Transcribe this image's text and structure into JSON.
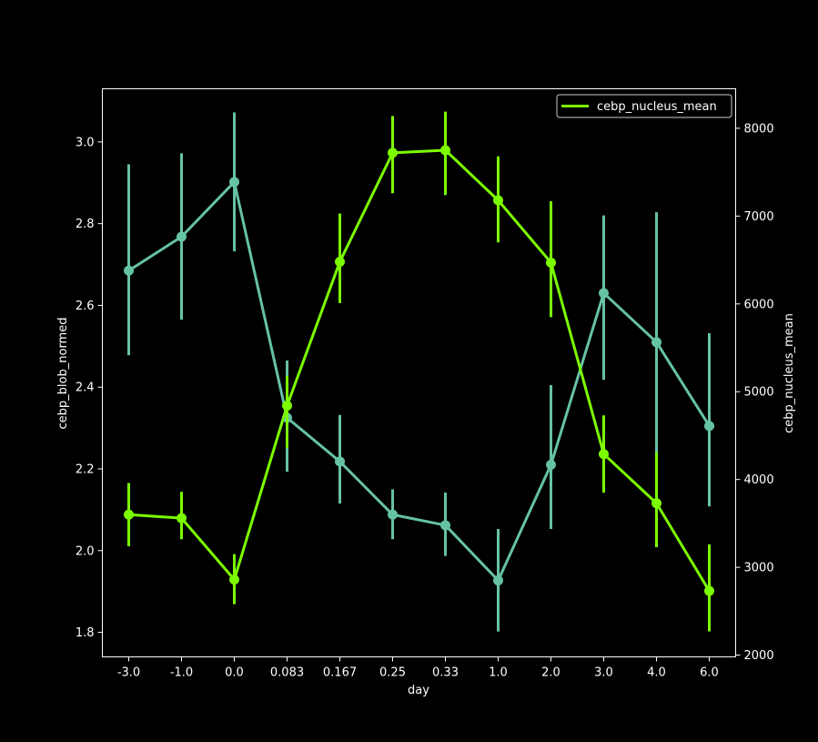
{
  "chart_data": {
    "type": "line",
    "x_label": "day",
    "y_left_label": "cebp_blob_normed",
    "y_right_label": "cebp_nucleus_mean",
    "categories": [
      "-3.0",
      "-1.0",
      "0.0",
      "0.083",
      "0.167",
      "0.25",
      "0.33",
      "1.0",
      "2.0",
      "3.0",
      "4.0",
      "6.0"
    ],
    "y_left_ticks": [
      "1.8",
      "2.0",
      "2.2",
      "2.4",
      "2.6",
      "2.8",
      "3.0"
    ],
    "y_right_ticks": [
      "2000",
      "3000",
      "4000",
      "5000",
      "6000",
      "7000",
      "8000"
    ],
    "y_left_range": [
      1.74,
      3.13
    ],
    "y_right_range": [
      1980,
      8450
    ],
    "legend_position": "upper right",
    "grid": false,
    "series": [
      {
        "name": "",
        "axis": "left",
        "color": "#66c2a5",
        "values": [
          2.685,
          2.768,
          2.902,
          2.325,
          2.218,
          2.088,
          2.062,
          1.927,
          2.21,
          2.63,
          2.51,
          2.305
        ],
        "err_low": [
          2.478,
          2.565,
          2.732,
          2.193,
          2.115,
          2.028,
          1.987,
          1.802,
          2.053,
          2.418,
          2.233,
          2.108
        ],
        "err_high": [
          2.945,
          2.972,
          3.072,
          2.465,
          2.332,
          2.15,
          2.142,
          2.053,
          2.405,
          2.82,
          2.828,
          2.532
        ]
      },
      {
        "name": "cebp_nucleus_mean",
        "axis": "right",
        "color": "#7cfc00",
        "values": [
          3600,
          3560,
          2860,
          4840,
          6480,
          7720,
          7750,
          7180,
          6470,
          4290,
          3730,
          2730
        ],
        "err_low": [
          3240,
          3320,
          2580,
          4360,
          6010,
          7260,
          7240,
          6700,
          5850,
          3850,
          3230,
          2270
        ],
        "err_high": [
          3960,
          3860,
          3150,
          5180,
          7030,
          8140,
          8190,
          7680,
          7170,
          4730,
          4310,
          3260
        ]
      }
    ]
  }
}
